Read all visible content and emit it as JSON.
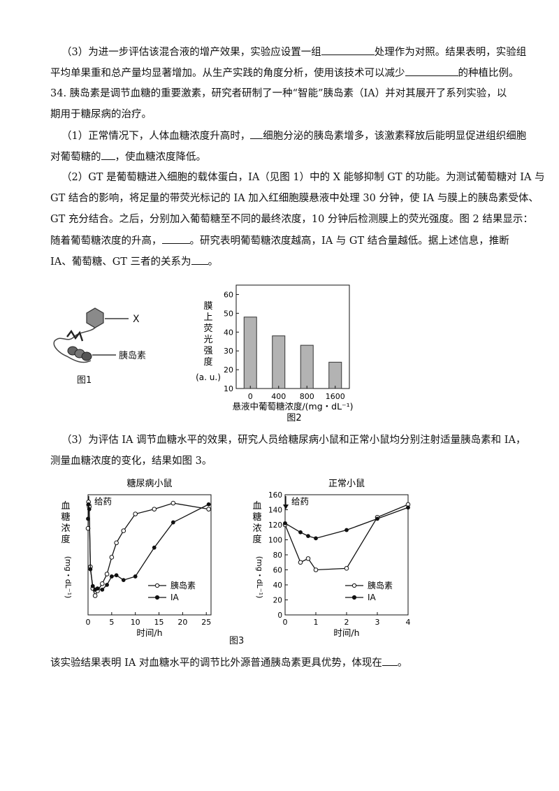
{
  "text": {
    "p3a_pre": "（3）为进一步评估该混合液的增产效果，实验应设置一组",
    "p3a_post": "处理作为对照。结果表明，实验组",
    "p3b_pre": "平均单果重和总产量均显著增加。从生产实践的角度分析，使用该技术可以减少",
    "p3b_post": "的种植比例。",
    "q34_l1": "34. 胰岛素是调节血糖的重要激素，研究者研制了一种“智能”胰岛素（IA）并对其展开了系列实验，以",
    "q34_l2": "期用于糖尿病的治疗。",
    "q1_pre": "（1）正常情况下，人体血糖浓度升高时，",
    "q1_post": "细胞分泌的胰岛素增多，该激素释放后能明显促进组织细胞",
    "q1b_pre": "对葡萄糖的",
    "q1b_post": "，使血糖浓度降低。",
    "q2_l1": "（2）GT 是葡萄糖进入细胞的载体蛋白，IA（见图 1）中的 X 能够抑制 GT 的功能。为测试葡萄糖对 IA 与",
    "q2_l2": "GT 结合的影响，将足量的带荧光标记的 IA 加入红细胞膜悬液中处理 30 分钟，使 IA 与膜上的胰岛素受体、",
    "q2_l3": "GT 充分结合。之后，分别加入葡萄糖至不同的最终浓度，10 分钟后检测膜上的荧光强度。图 2 结果显示：",
    "q2_l4_pre": "随着葡萄糖浓度的升高，",
    "q2_l4_post": "。研究表明葡萄糖浓度越高，IA 与 GT 结合量越低。据上述信息，推断",
    "q2_l5_pre": "IA、葡萄糖、GT 三者的关系为",
    "q2_l5_post": "。",
    "q3_l1": "（3）为评估 IA 调节血糖水平的效果，研究人员给糖尿病小鼠和正常小鼠均分别注射适量胰岛素和 IA，",
    "q3_l2": "测量血糖浓度的变化，结果如图 3。",
    "final_pre": "该实验结果表明 IA 对血糖水平的调节比外源普通胰岛素更具优势，体现在",
    "final_post": "。"
  },
  "fig1": {
    "label_x": "X",
    "label_insulin": "胰岛素",
    "caption": "图1"
  },
  "fig3": {
    "caption": "图3"
  },
  "chart_data": [
    {
      "type": "bar",
      "title": "",
      "xlabel": "悬液中葡萄糖浓度/(mg・dL⁻¹)",
      "ylabel": "膜上荧光强度(a.u.)",
      "ylabel_chars": [
        "膜",
        "上",
        "荧",
        "光",
        "强",
        "度"
      ],
      "ylabel_unit": "(a. u.)",
      "categories": [
        "0",
        "400",
        "800",
        "1600"
      ],
      "values": [
        48,
        38,
        33,
        24
      ],
      "ylim": [
        10,
        65
      ],
      "yticks": [
        10,
        20,
        30,
        40,
        50,
        60
      ],
      "caption": "图2",
      "bar_color": "#b3b3b3"
    },
    {
      "type": "line",
      "title": "糖尿病小鼠",
      "xlabel": "时间/h",
      "ylabel_chars": [
        "血",
        "糖",
        "浓",
        "度"
      ],
      "ylabel_unit": "(mg・dL⁻¹)",
      "xlim": [
        0,
        26
      ],
      "xticks": [
        0,
        5,
        10,
        15,
        20,
        25
      ],
      "ylim": [
        0,
        500
      ],
      "annotation": "给药",
      "annotation_x": 0,
      "series": [
        {
          "name": "胰岛素",
          "marker": "open",
          "x": [
            0,
            0.1,
            0.25,
            0.5,
            1,
            1.5,
            2,
            3,
            4,
            5,
            6,
            7.5,
            10,
            14,
            18,
            25.5
          ],
          "y": [
            360,
            470,
            450,
            200,
            110,
            80,
            100,
            130,
            170,
            240,
            300,
            350,
            420,
            440,
            465,
            440
          ]
        },
        {
          "name": "IA",
          "marker": "filled",
          "x": [
            0,
            0.1,
            0.25,
            0.5,
            1,
            1.5,
            2,
            3,
            4,
            5,
            6,
            7.5,
            10,
            14,
            18,
            25.5
          ],
          "y": [
            400,
            460,
            440,
            190,
            120,
            105,
            110,
            105,
            125,
            160,
            165,
            145,
            160,
            280,
            385,
            460
          ]
        }
      ]
    },
    {
      "type": "line",
      "title": "正常小鼠",
      "xlabel": "时间/h",
      "ylabel_chars": [
        "血",
        "糖",
        "浓",
        "度"
      ],
      "ylabel_unit": "(mg・dL⁻¹)",
      "xlim": [
        0,
        4
      ],
      "xticks": [
        0,
        1,
        2,
        3,
        4
      ],
      "ylim": [
        0,
        160
      ],
      "yticks": [
        0,
        20,
        40,
        60,
        80,
        100,
        120,
        140,
        160
      ],
      "annotation": "给药",
      "annotation_x": 0,
      "series": [
        {
          "name": "胰岛素",
          "marker": "open",
          "x": [
            0,
            0.5,
            0.75,
            1,
            2,
            3,
            4
          ],
          "y": [
            120,
            70,
            75,
            60,
            62,
            130,
            147
          ]
        },
        {
          "name": "IA",
          "marker": "filled",
          "x": [
            0,
            0.5,
            0.75,
            1,
            2,
            3,
            4
          ],
          "y": [
            122,
            110,
            105,
            102,
            113,
            128,
            143
          ]
        }
      ]
    }
  ]
}
